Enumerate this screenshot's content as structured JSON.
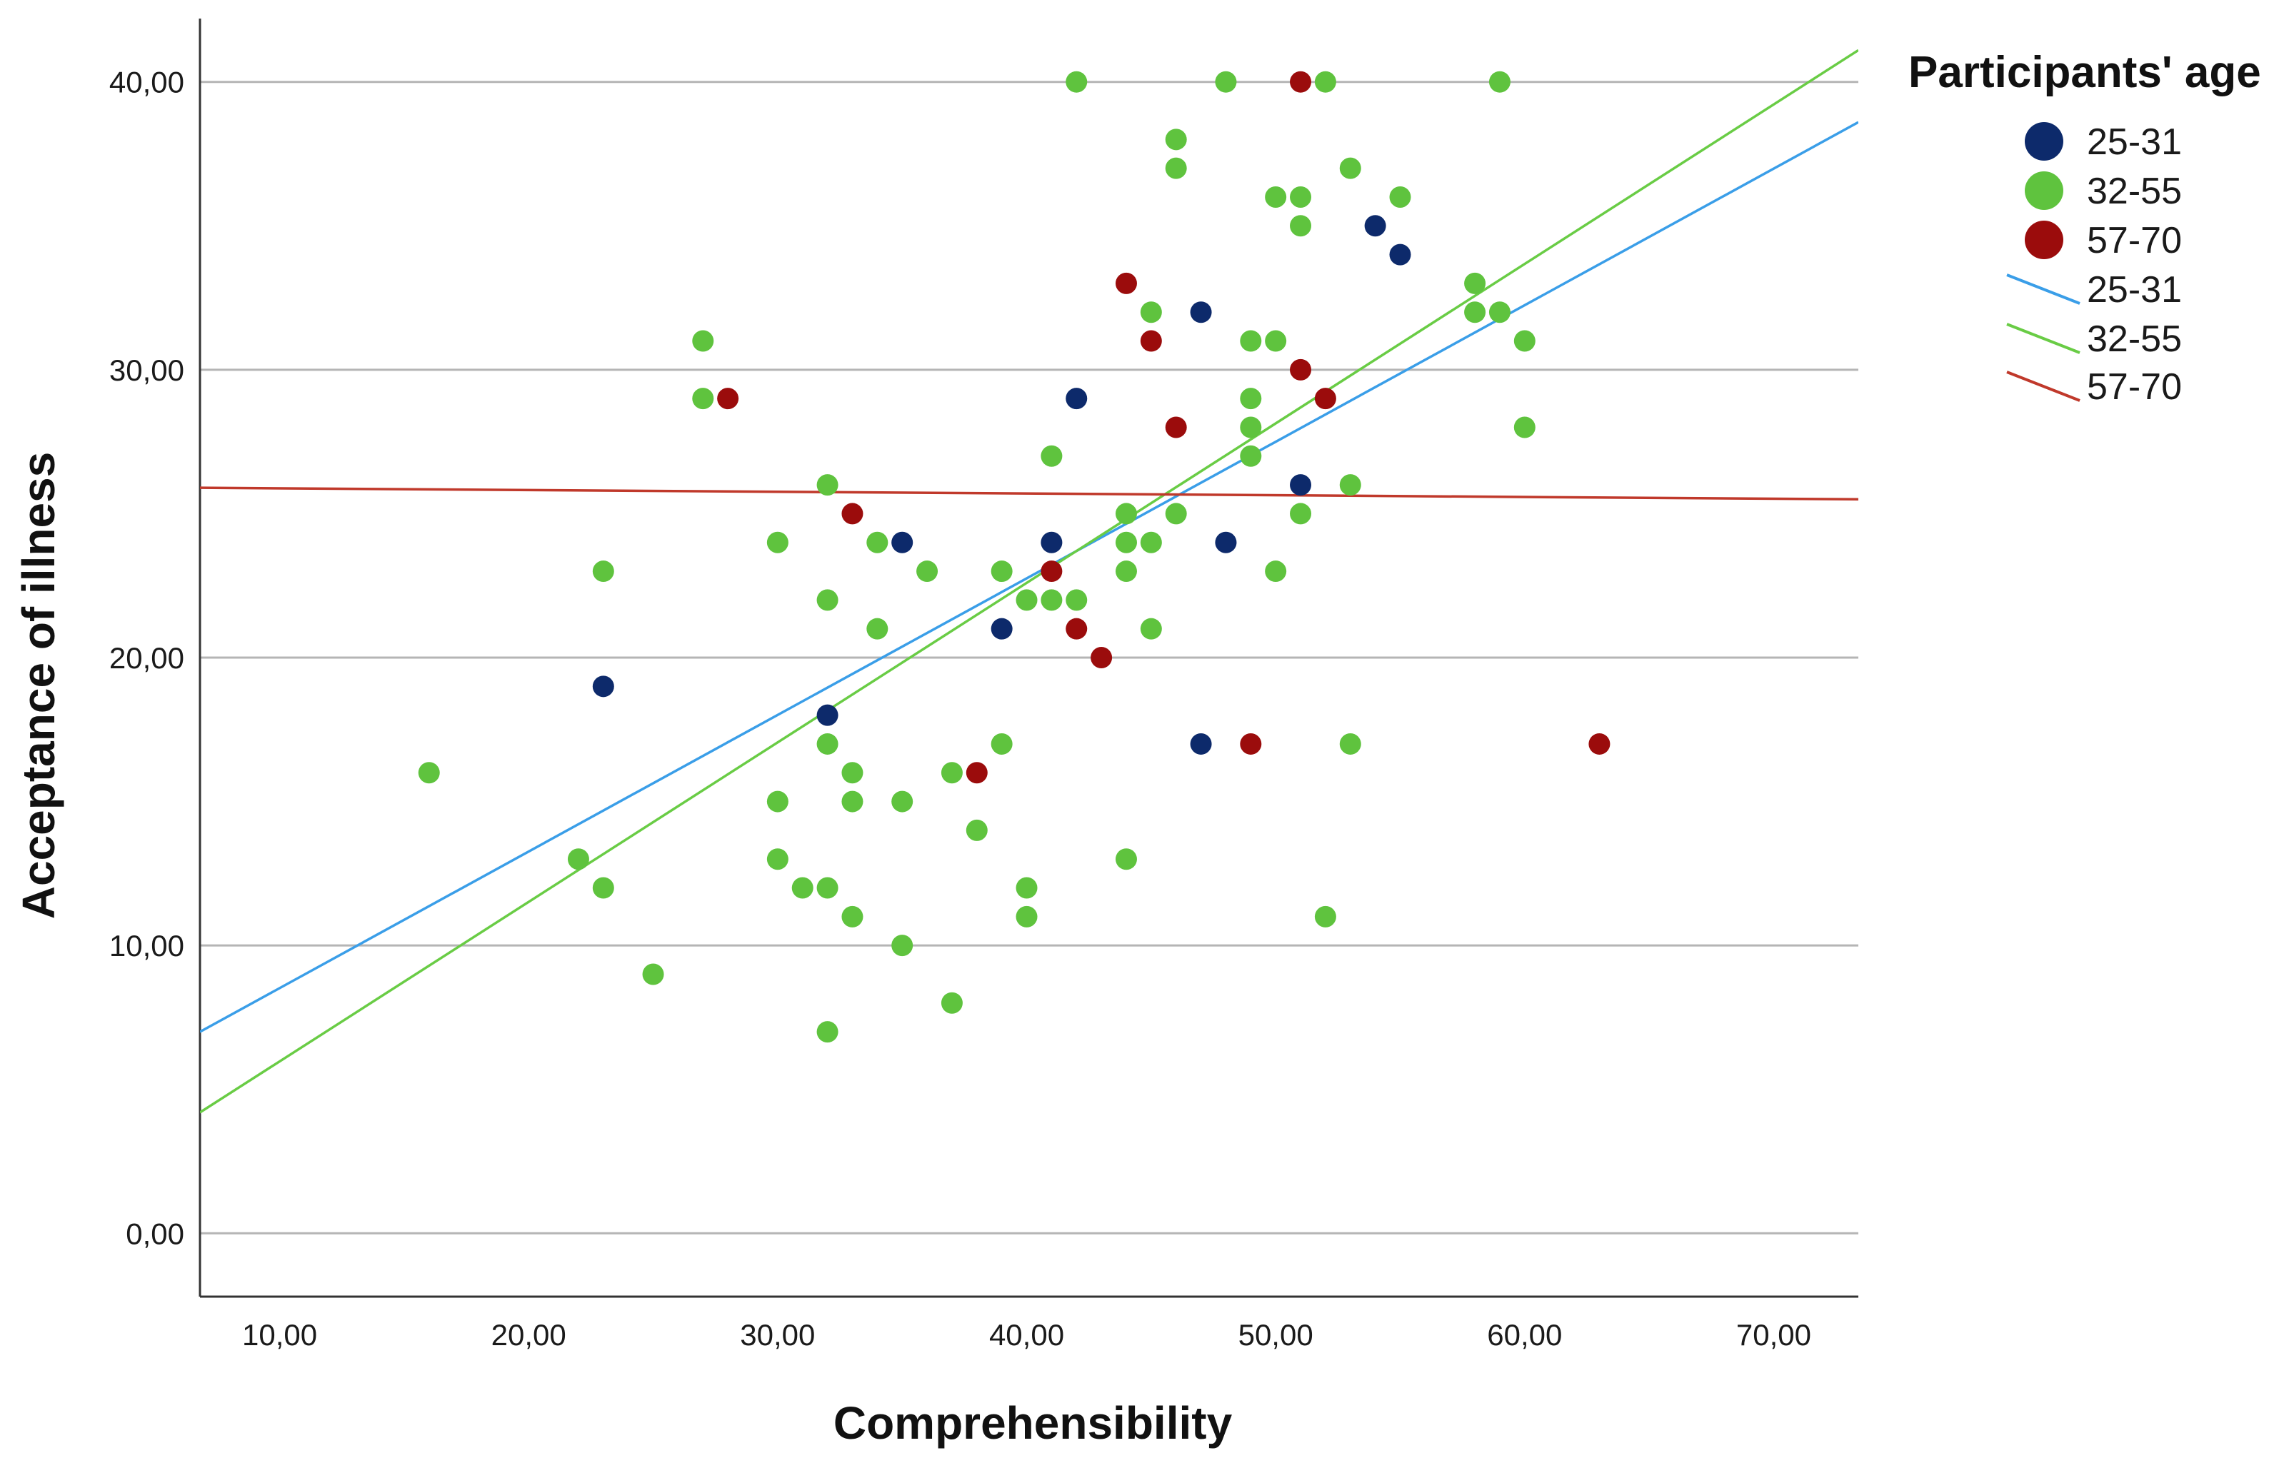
{
  "chart_data": {
    "type": "scatter",
    "title": "",
    "xlabel": "Comprehensibility",
    "ylabel": "Acceptance of illness",
    "xlim": [
      6.8,
      73.4
    ],
    "ylim": [
      -2.2,
      42.2
    ],
    "xticks": [
      10,
      20,
      30,
      40,
      50,
      60,
      70
    ],
    "yticks": [
      0,
      10,
      20,
      30,
      40
    ],
    "xtick_labels": [
      "10,00",
      "20,00",
      "30,00",
      "40,00",
      "50,00",
      "60,00",
      "70,00"
    ],
    "ytick_labels": [
      "0,00",
      "10,00",
      "20,00",
      "30,00",
      "40,00"
    ],
    "grid": "horizontal",
    "legend_title": "Participants' age",
    "legend_position": "top-right",
    "series": [
      {
        "name": "25-31",
        "marker_color": "#0d2a6b",
        "line_color": "#3a9ee8",
        "fit_line": [
          [
            6.8,
            7.0
          ],
          [
            73.4,
            38.6
          ]
        ],
        "points": [
          [
            23,
            19
          ],
          [
            32,
            18
          ],
          [
            35,
            24
          ],
          [
            39,
            21
          ],
          [
            41,
            24
          ],
          [
            42,
            29
          ],
          [
            47,
            32
          ],
          [
            47,
            17
          ],
          [
            48,
            24
          ],
          [
            51,
            26
          ],
          [
            54,
            35
          ],
          [
            55,
            34
          ]
        ]
      },
      {
        "name": "32-55",
        "marker_color": "#5fc33e",
        "line_color": "#69cc45",
        "fit_line": [
          [
            6.8,
            4.2
          ],
          [
            73.4,
            41.1
          ]
        ],
        "points": [
          [
            16,
            16
          ],
          [
            22,
            13
          ],
          [
            23,
            23
          ],
          [
            23,
            12
          ],
          [
            25,
            9
          ],
          [
            27,
            31
          ],
          [
            27,
            29
          ],
          [
            30,
            24
          ],
          [
            30,
            15
          ],
          [
            30,
            13
          ],
          [
            31,
            12
          ],
          [
            32,
            26
          ],
          [
            32,
            22
          ],
          [
            32,
            17
          ],
          [
            32,
            12
          ],
          [
            32,
            7
          ],
          [
            33,
            16
          ],
          [
            33,
            15
          ],
          [
            33,
            11
          ],
          [
            34,
            24
          ],
          [
            34,
            21
          ],
          [
            35,
            15
          ],
          [
            35,
            10
          ],
          [
            36,
            23
          ],
          [
            37,
            16
          ],
          [
            37,
            8
          ],
          [
            38,
            14
          ],
          [
            39,
            23
          ],
          [
            39,
            17
          ],
          [
            40,
            22
          ],
          [
            40,
            12
          ],
          [
            40,
            11
          ],
          [
            41,
            27
          ],
          [
            41,
            22
          ],
          [
            42,
            40
          ],
          [
            42,
            22
          ],
          [
            44,
            25
          ],
          [
            44,
            24
          ],
          [
            44,
            23
          ],
          [
            44,
            13
          ],
          [
            45,
            32
          ],
          [
            45,
            24
          ],
          [
            45,
            21
          ],
          [
            46,
            38
          ],
          [
            46,
            37
          ],
          [
            46,
            25
          ],
          [
            48,
            40
          ],
          [
            49,
            31
          ],
          [
            49,
            29
          ],
          [
            49,
            28
          ],
          [
            49,
            27
          ],
          [
            50,
            36
          ],
          [
            50,
            31
          ],
          [
            50,
            23
          ],
          [
            51,
            36
          ],
          [
            51,
            35
          ],
          [
            51,
            25
          ],
          [
            52,
            40
          ],
          [
            52,
            11
          ],
          [
            53,
            37
          ],
          [
            53,
            26
          ],
          [
            53,
            17
          ],
          [
            55,
            36
          ],
          [
            58,
            33
          ],
          [
            58,
            32
          ],
          [
            59,
            40
          ],
          [
            59,
            32
          ],
          [
            60,
            31
          ],
          [
            60,
            28
          ]
        ]
      },
      {
        "name": "57-70",
        "marker_color": "#9b0c0c",
        "line_color": "#c0392b",
        "fit_line": [
          [
            6.8,
            25.9
          ],
          [
            73.4,
            25.5
          ]
        ],
        "points": [
          [
            28,
            29
          ],
          [
            33,
            25
          ],
          [
            38,
            16
          ],
          [
            41,
            23
          ],
          [
            42,
            21
          ],
          [
            43,
            20
          ],
          [
            44,
            33
          ],
          [
            45,
            31
          ],
          [
            46,
            28
          ],
          [
            49,
            17
          ],
          [
            51,
            40
          ],
          [
            51,
            30
          ],
          [
            52,
            29
          ],
          [
            63,
            17
          ]
        ]
      }
    ]
  }
}
